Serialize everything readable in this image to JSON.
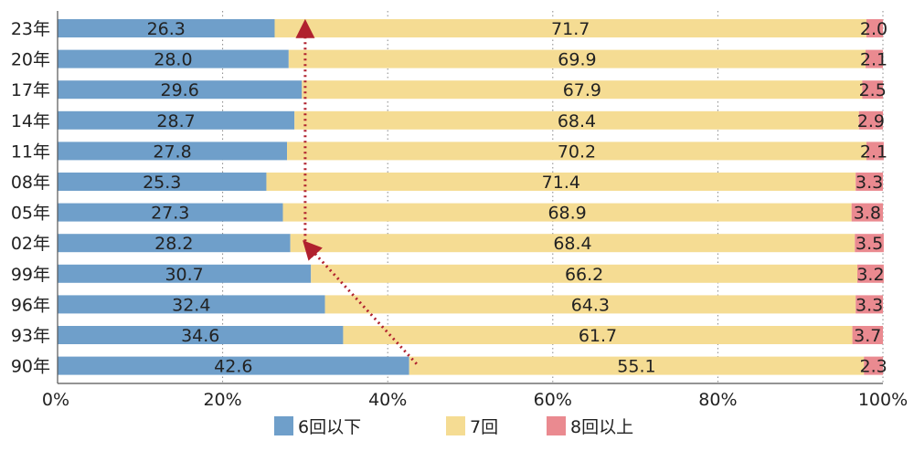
{
  "chart_data": {
    "type": "bar",
    "orientation": "horizontal",
    "stacked": true,
    "percent_stacked": true,
    "categories": [
      "23年",
      "20年",
      "17年",
      "14年",
      "11年",
      "08年",
      "05年",
      "02年",
      "99年",
      "96年",
      "93年",
      "90年"
    ],
    "series": [
      {
        "name": "6回以下",
        "color": "#6f9fca",
        "values": [
          26.3,
          28.0,
          29.6,
          28.7,
          27.8,
          25.3,
          27.3,
          28.2,
          30.7,
          32.4,
          34.6,
          42.6
        ]
      },
      {
        "name": "7回",
        "color": "#f5dc93",
        "values": [
          71.7,
          69.9,
          67.9,
          68.4,
          70.2,
          71.4,
          68.9,
          68.4,
          66.2,
          64.3,
          61.7,
          55.1
        ]
      },
      {
        "name": "8回以上",
        "color": "#ea8a90",
        "values": [
          2.0,
          2.1,
          2.5,
          2.9,
          2.1,
          3.3,
          3.8,
          3.5,
          3.2,
          3.3,
          3.7,
          2.3
        ]
      }
    ],
    "value_labels": {
      "6回以下": [
        "26.3",
        "28.0",
        "29.6",
        "28.7",
        "27.8",
        "25.3",
        "27.3",
        "28.2",
        "30.7",
        "32.4",
        "34.6",
        "42.6"
      ],
      "7回": [
        "71.7",
        "69.9",
        "67.9",
        "68.4",
        "70.2",
        "71.4",
        "68.9",
        "68.4",
        "66.2",
        "64.3",
        "61.7",
        "55.1"
      ],
      "8回以上": [
        "2.0",
        "2.1",
        "2.5",
        "2.9",
        "2.1",
        "3.3",
        "3.8",
        "3.5",
        "3.2",
        "3.3",
        "3.7",
        "2.3"
      ]
    },
    "x_ticks": [
      "0%",
      "20%",
      "40%",
      "60%",
      "80%",
      "100%"
    ],
    "xlim": [
      0,
      100
    ],
    "grid": "vertical dotted",
    "legend_position": "bottom",
    "annotations": [
      {
        "type": "arrow",
        "style": "dotted",
        "color": "#b0212e",
        "from": {
          "category": "90年",
          "x": 43.5
        },
        "to": {
          "category": "02年",
          "x": 30
        }
      },
      {
        "type": "arrow",
        "style": "dotted",
        "color": "#b0212e",
        "from": {
          "category": "02年",
          "x": 30
        },
        "to": {
          "category": "23年",
          "x": 30
        }
      }
    ],
    "colors": {
      "axis": "#555555",
      "grid": "#888888",
      "arrow": "#b0212e",
      "text": "#222222"
    }
  }
}
